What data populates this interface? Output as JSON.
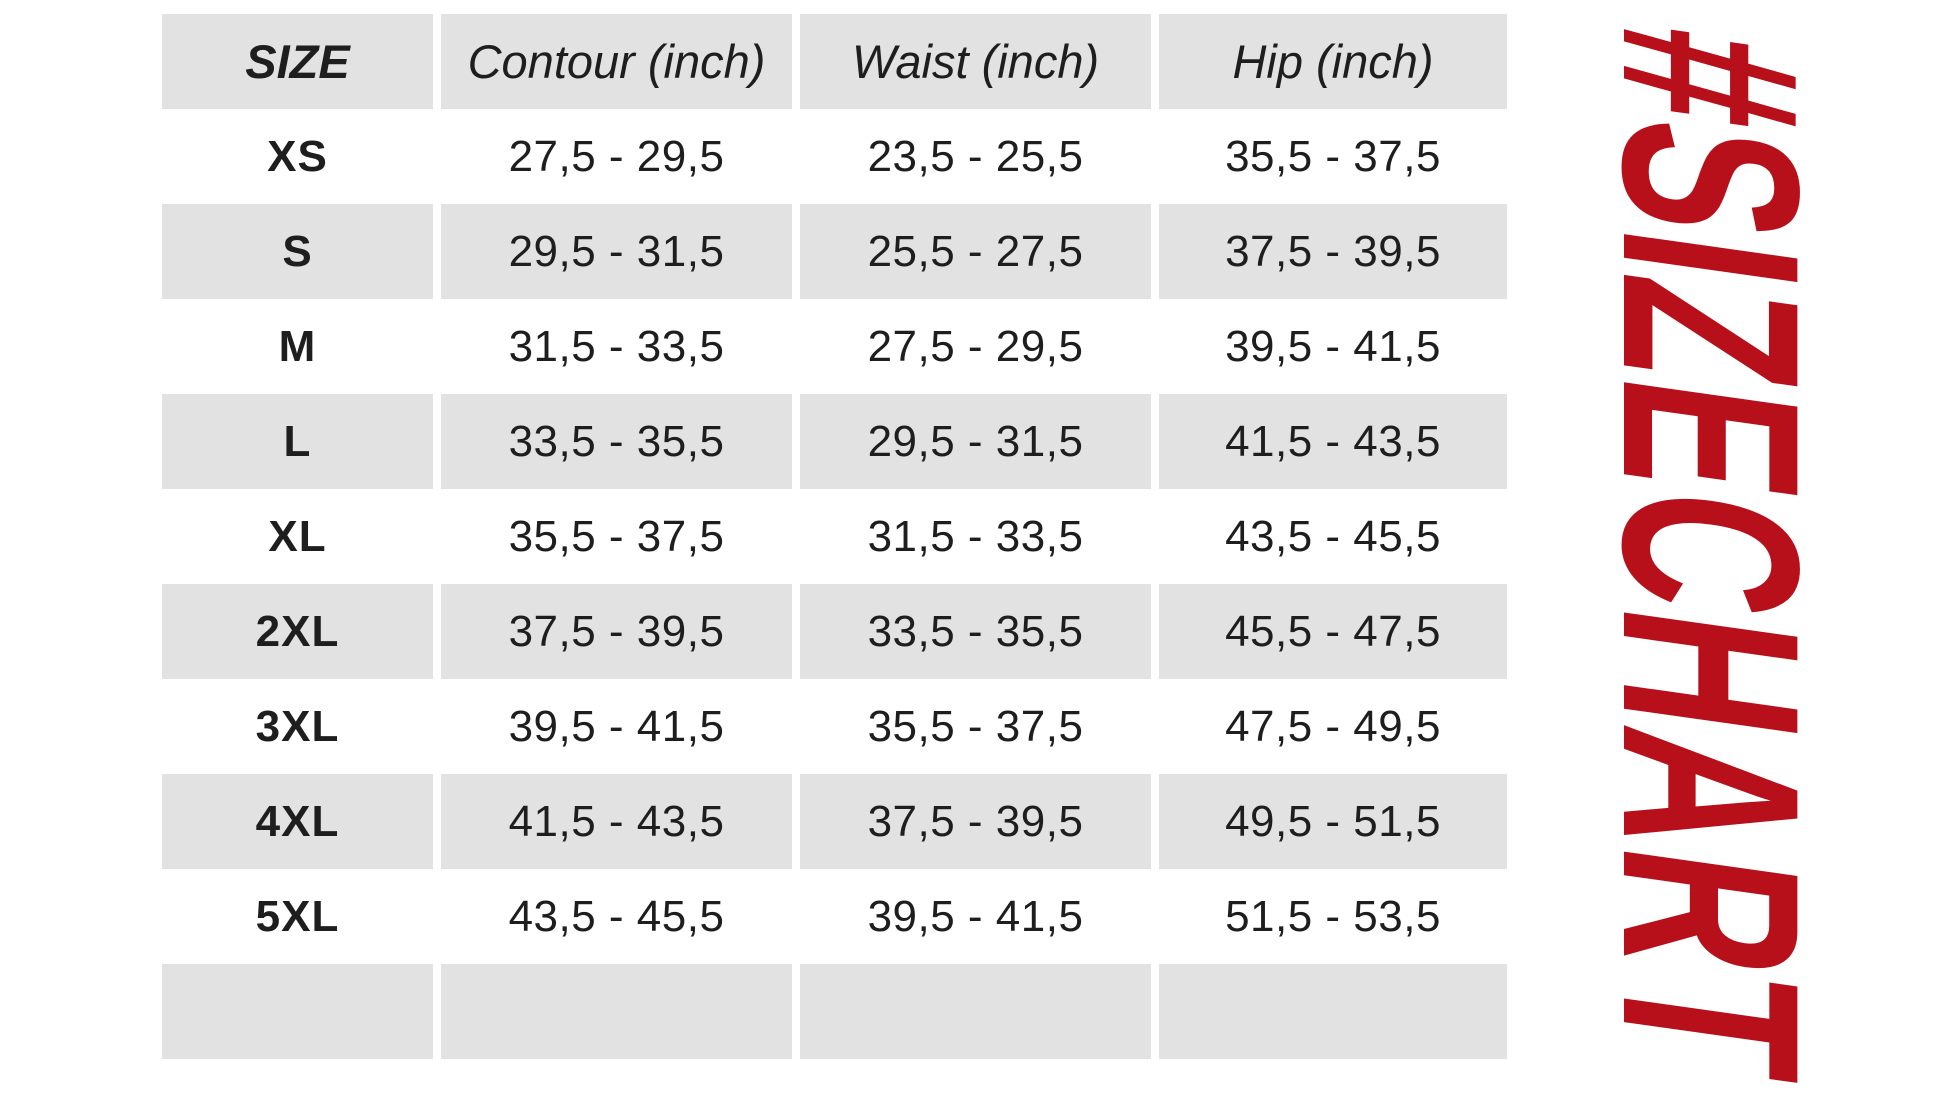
{
  "chart_data": {
    "type": "table",
    "title": "#SIZECHART",
    "columns": [
      "SIZE",
      "Contour (inch)",
      "Waist (inch)",
      "Hip (inch)"
    ],
    "rows": [
      {
        "size": "XS",
        "contour": "27,5 - 29,5",
        "waist": "23,5 - 25,5",
        "hip": "35,5 - 37,5"
      },
      {
        "size": "S",
        "contour": "29,5 - 31,5",
        "waist": "25,5 - 27,5",
        "hip": "37,5 - 39,5"
      },
      {
        "size": "M",
        "contour": "31,5 - 33,5",
        "waist": "27,5 - 29,5",
        "hip": "39,5 - 41,5"
      },
      {
        "size": "L",
        "contour": "33,5 - 35,5",
        "waist": "29,5 - 31,5",
        "hip": "41,5 - 43,5"
      },
      {
        "size": "XL",
        "contour": "35,5 - 37,5",
        "waist": "31,5 - 33,5",
        "hip": "43,5 - 45,5"
      },
      {
        "size": "2XL",
        "contour": "37,5 - 39,5",
        "waist": "33,5 - 35,5",
        "hip": "45,5 - 47,5"
      },
      {
        "size": "3XL",
        "contour": "39,5 - 41,5",
        "waist": "35,5 - 37,5",
        "hip": "47,5 - 49,5"
      },
      {
        "size": "4XL",
        "contour": "41,5 - 43,5",
        "waist": "37,5 - 39,5",
        "hip": "49,5 - 51,5"
      },
      {
        "size": "5XL",
        "contour": "43,5 - 45,5",
        "waist": "39,5 - 41,5",
        "hip": "51,5 - 53,5"
      }
    ],
    "has_empty_last_row": true,
    "layout": {
      "row_alternation": "header gray, then white/gray alternating",
      "grid": "white gutters between columns"
    }
  },
  "watermark": {
    "text": "#SIZECHART",
    "color": "#b8101a",
    "orientation": "rotated 90deg clockwise, reads top to bottom"
  },
  "colors": {
    "row_gray": "#e2e2e2",
    "background": "#ffffff",
    "text": "#1e1e1e",
    "accent_red": "#b8101a"
  }
}
